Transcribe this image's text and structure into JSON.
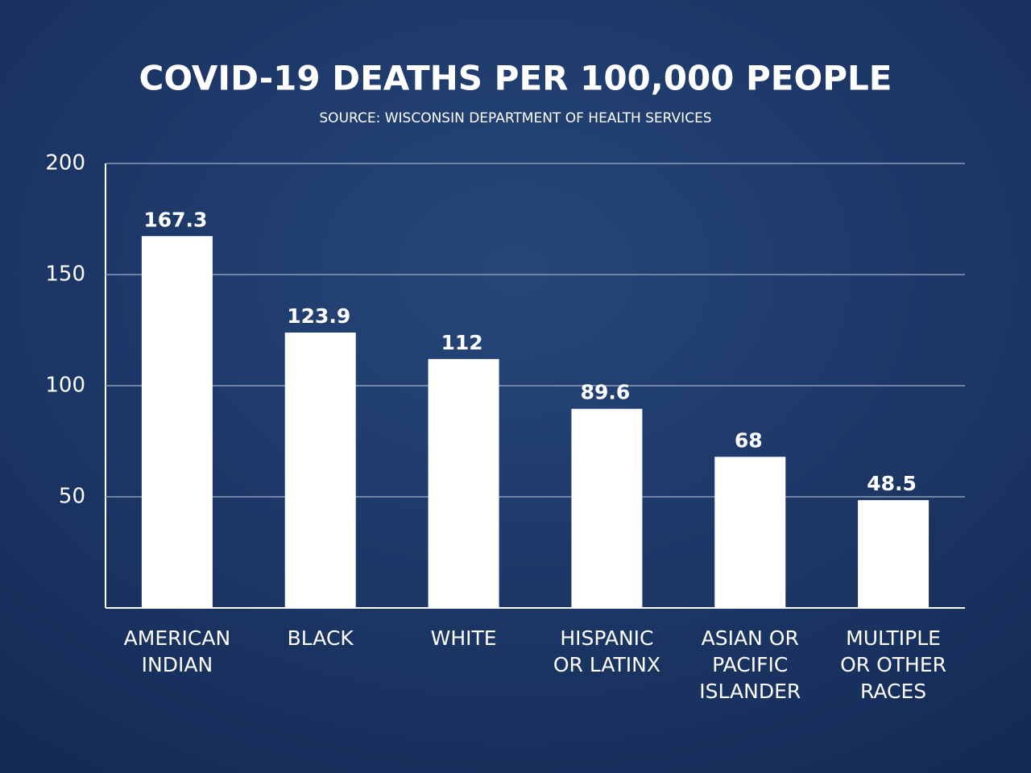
{
  "chart_data": {
    "type": "bar",
    "title": "COVID-19 DEATHS PER 100,000 PEOPLE",
    "subtitle": "SOURCE: WISCONSIN DEPARTMENT OF HEALTH SERVICES",
    "categories": [
      "AMERICAN\nINDIAN",
      "BLACK",
      "WHITE",
      "HISPANIC\nOR LATINX",
      "ASIAN OR\nPACIFIC\nISLANDER",
      "MULTIPLE\nOR OTHER\nRACES"
    ],
    "values": [
      167.3,
      123.9,
      112,
      89.6,
      68,
      48.5
    ],
    "color": "#ffffff",
    "ylim": [
      0,
      200
    ],
    "yticks": [
      50,
      100,
      150,
      200
    ],
    "grid": true
  }
}
